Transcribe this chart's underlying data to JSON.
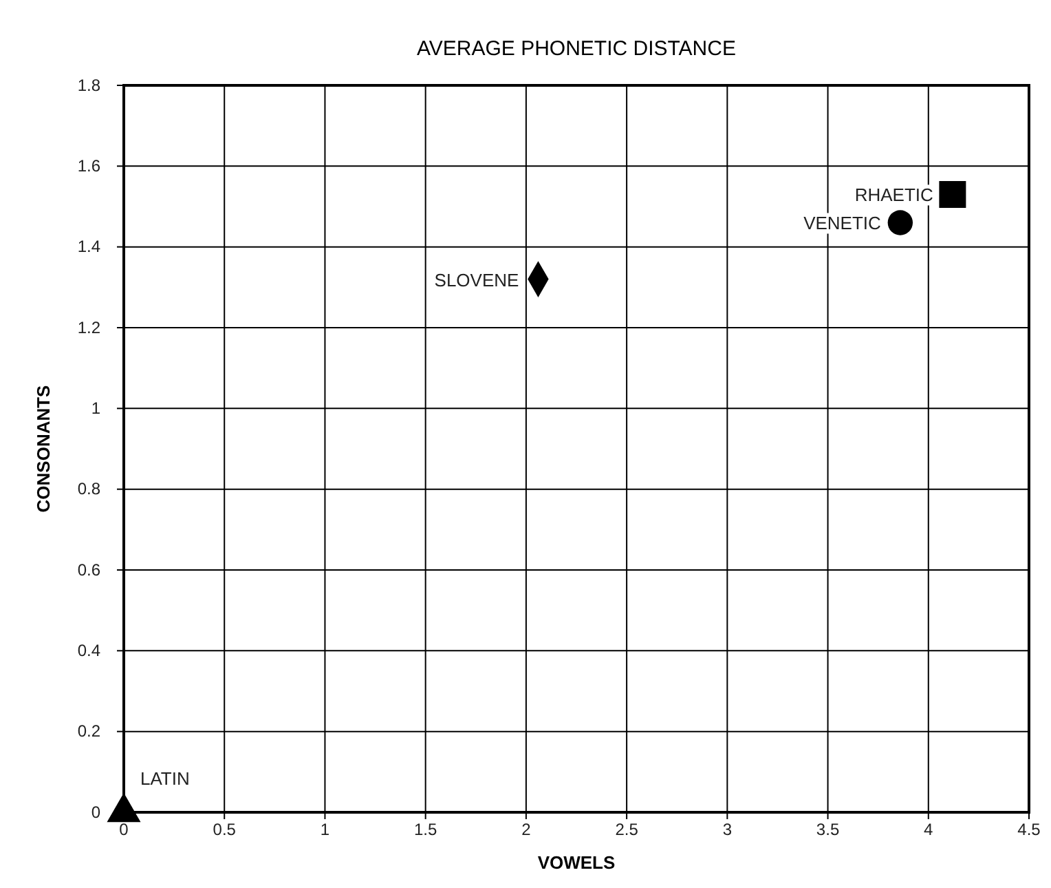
{
  "chart_data": {
    "type": "scatter",
    "title": "AVERAGE PHONETIC DISTANCE",
    "xlabel": "VOWELS",
    "ylabel": "CONSONANTS",
    "xlim": [
      0,
      4.5
    ],
    "xticks": [
      0,
      0.5,
      1,
      1.5,
      2,
      2.5,
      3,
      3.5,
      4,
      4.5
    ],
    "ylim": [
      0,
      1.8
    ],
    "yticks": [
      0,
      0.2,
      0.4,
      0.6,
      0.8,
      1,
      1.2,
      1.4,
      1.6,
      1.8
    ],
    "grid": true,
    "series": [
      {
        "name": "LATIN",
        "color": "#000000",
        "marker": "triangle",
        "x": [
          0
        ],
        "values": [
          0
        ]
      },
      {
        "name": "SLOVENE",
        "color": "#000000",
        "marker": "diamond",
        "x": [
          2.06
        ],
        "values": [
          1.32
        ]
      },
      {
        "name": "VENETIC",
        "color": "#000000",
        "marker": "circle",
        "x": [
          3.86
        ],
        "values": [
          1.46
        ]
      },
      {
        "name": "RHAETIC",
        "color": "#000000",
        "marker": "square",
        "x": [
          4.12
        ],
        "values": [
          1.53
        ]
      }
    ]
  }
}
